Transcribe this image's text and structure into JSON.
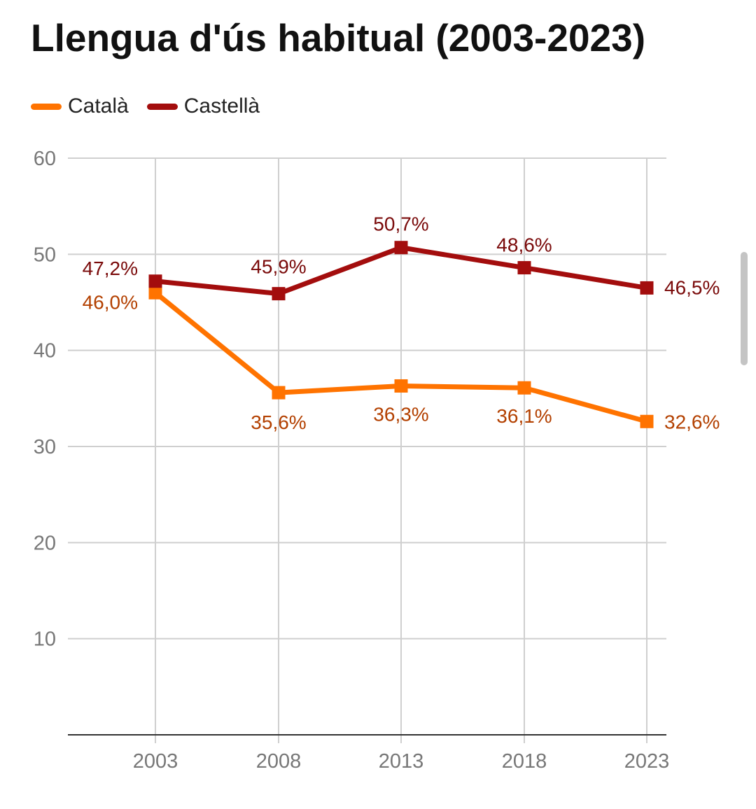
{
  "chart_data": {
    "type": "line",
    "title": "Llengua d'ús habitual (2003-2023)",
    "categories": [
      "2003",
      "2008",
      "2013",
      "2018",
      "2023"
    ],
    "series": [
      {
        "name": "Català",
        "color": "#ff7300",
        "label_color": "#b34000",
        "values": [
          46.0,
          35.6,
          36.3,
          36.1,
          32.6
        ],
        "labels": [
          "46,0%",
          "35,6%",
          "36,3%",
          "36,1%",
          "32,6%"
        ]
      },
      {
        "name": "Castellà",
        "color": "#a30d0d",
        "label_color": "#7a0a0a",
        "values": [
          47.2,
          45.9,
          50.7,
          48.6,
          46.5
        ],
        "labels": [
          "47,2%",
          "45,9%",
          "50,7%",
          "48,6%",
          "46,5%"
        ]
      }
    ],
    "y_ticks": [
      "60",
      "50",
      "40",
      "30",
      "20",
      "10"
    ],
    "ylim": [
      0,
      60
    ],
    "grid": true,
    "legend_position": "top-left"
  }
}
